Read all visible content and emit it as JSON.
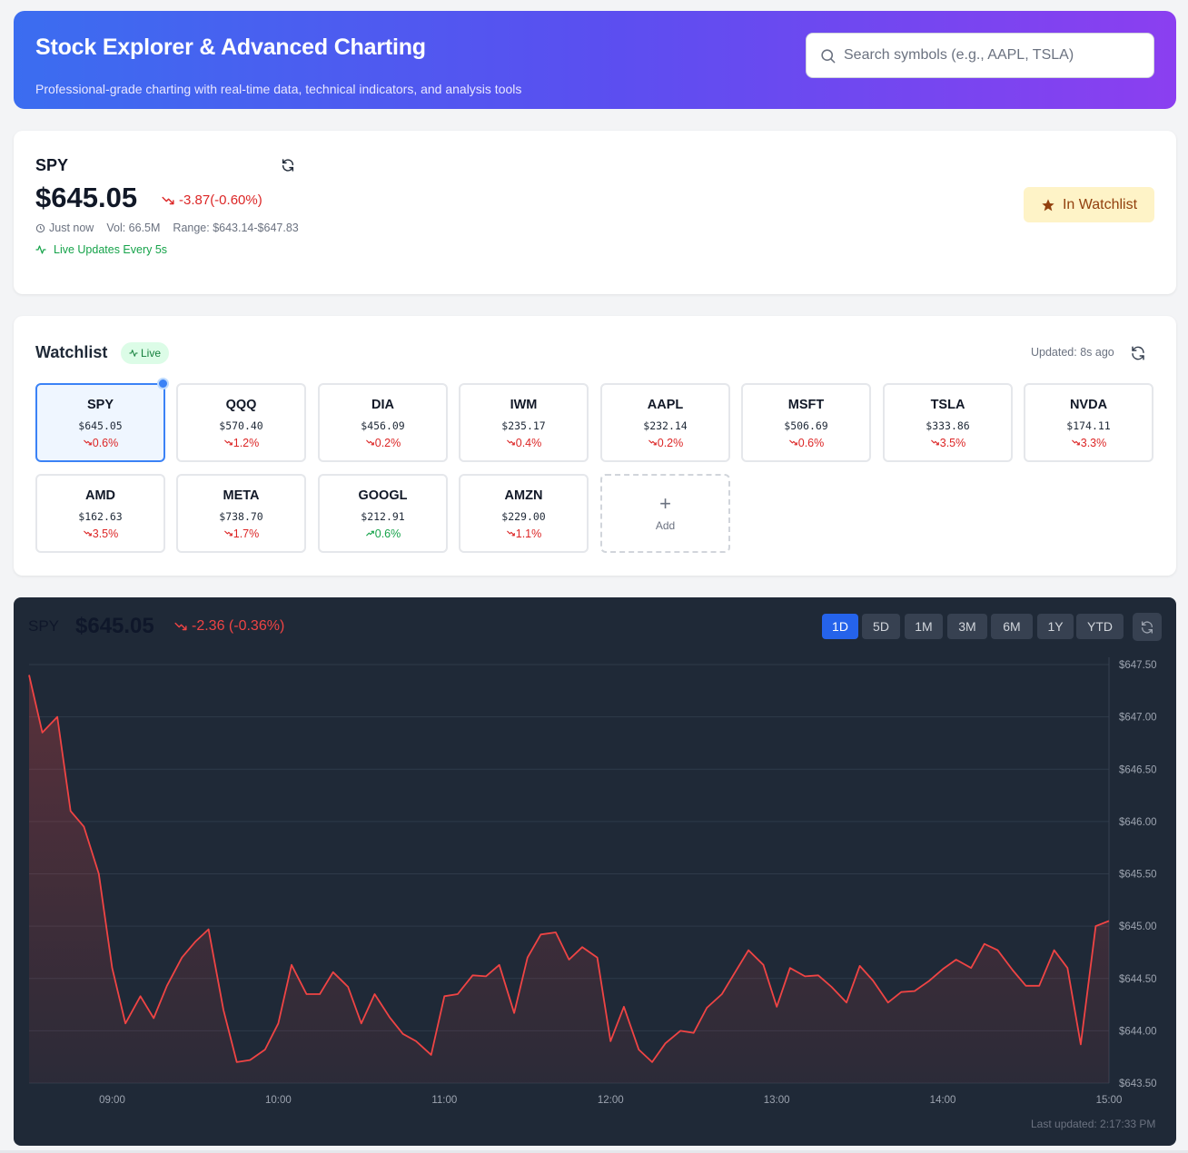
{
  "header": {
    "title": "Stock Explorer & Advanced Charting",
    "subtitle": "Professional-grade charting with real-time data, technical indicators, and analysis tools",
    "search_placeholder": "Search symbols (e.g., AAPL, TSLA)",
    "search_value": ""
  },
  "quote": {
    "symbol": "SPY",
    "price": "$645.05",
    "change": "-3.87(-0.60%)",
    "time": "Just now",
    "volume": "Vol: 66.5M",
    "range": "Range: $643.14-$647.83",
    "live": "Live Updates Every 5s",
    "watchlist_button": "In Watchlist"
  },
  "watchlist": {
    "title": "Watchlist",
    "live_badge": "Live",
    "updated": "Updated: 8s ago",
    "add_label": "Add",
    "add_symbol": "+",
    "items": [
      {
        "symbol": "SPY",
        "price": "$645.05",
        "change": "0.6%",
        "up": false,
        "active": true
      },
      {
        "symbol": "QQQ",
        "price": "$570.40",
        "change": "1.2%",
        "up": false
      },
      {
        "symbol": "DIA",
        "price": "$456.09",
        "change": "0.2%",
        "up": false
      },
      {
        "symbol": "IWM",
        "price": "$235.17",
        "change": "0.4%",
        "up": false
      },
      {
        "symbol": "AAPL",
        "price": "$232.14",
        "change": "0.2%",
        "up": false
      },
      {
        "symbol": "MSFT",
        "price": "$506.69",
        "change": "0.6%",
        "up": false
      },
      {
        "symbol": "TSLA",
        "price": "$333.86",
        "change": "3.5%",
        "up": false
      },
      {
        "symbol": "NVDA",
        "price": "$174.11",
        "change": "3.3%",
        "up": false
      },
      {
        "symbol": "AMD",
        "price": "$162.63",
        "change": "3.5%",
        "up": false
      },
      {
        "symbol": "META",
        "price": "$738.70",
        "change": "1.7%",
        "up": false
      },
      {
        "symbol": "GOOGL",
        "price": "$212.91",
        "change": "0.6%",
        "up": true
      },
      {
        "symbol": "AMZN",
        "price": "$229.00",
        "change": "1.1%",
        "up": false
      }
    ]
  },
  "chart": {
    "symbol": "SPY",
    "price": "$645.05",
    "change": "-2.36 (-0.36%)",
    "timeframes": [
      "1D",
      "5D",
      "1M",
      "3M",
      "6M",
      "1Y",
      "YTD"
    ],
    "active_timeframe": "1D",
    "last_updated": "Last updated: 2:17:33 PM"
  },
  "colors": {
    "accent": "#2563eb",
    "down": "#ef4444",
    "up": "#16a34a",
    "chart_bg": "#1f2937"
  },
  "chart_data": {
    "type": "area",
    "xlabel": "",
    "ylabel": "",
    "x_ticks": [
      "09:00",
      "10:00",
      "11:00",
      "12:00",
      "13:00",
      "14:00",
      "15:00"
    ],
    "y_ticks": [
      "$647.50",
      "$647.00",
      "$646.50",
      "$646.00",
      "$645.50",
      "$645.00",
      "$644.50",
      "$644.00",
      "$643.50"
    ],
    "ylim": [
      643.5,
      647.5
    ],
    "xlim_hours": [
      8.5,
      15.0
    ],
    "grid": true,
    "series": [
      {
        "x": [
          8.5,
          8.58,
          8.67,
          8.75,
          8.83,
          8.92,
          9.0,
          9.08,
          9.17,
          9.25,
          9.33,
          9.42,
          9.5,
          9.58,
          9.67,
          9.75,
          9.83,
          9.92,
          10.0,
          10.08,
          10.17,
          10.25,
          10.33,
          10.42,
          10.5,
          10.58,
          10.67,
          10.75,
          10.83,
          10.92,
          11.0,
          11.08,
          11.17,
          11.25,
          11.33,
          11.42,
          11.5,
          11.58,
          11.67,
          11.75,
          11.83,
          11.92,
          12.0,
          12.08,
          12.17,
          12.25,
          12.33,
          12.42,
          12.5,
          12.58,
          12.67,
          12.75,
          12.83,
          12.92,
          13.0,
          13.08,
          13.17,
          13.25,
          13.33,
          13.42,
          13.5,
          13.58,
          13.67,
          13.75,
          13.83,
          13.92,
          14.0,
          14.08,
          14.17,
          14.25,
          14.33,
          14.42,
          14.5,
          14.58,
          14.67,
          14.75,
          14.83,
          14.92,
          15.0
        ],
        "y": [
          647.4,
          646.85,
          647.0,
          646.1,
          645.95,
          645.5,
          644.6,
          644.07,
          644.33,
          644.12,
          644.43,
          644.7,
          644.85,
          644.97,
          644.2,
          643.7,
          643.72,
          643.82,
          644.07,
          644.63,
          644.35,
          644.35,
          644.56,
          644.42,
          644.07,
          644.35,
          644.13,
          643.97,
          643.9,
          643.77,
          644.33,
          644.35,
          644.53,
          644.52,
          644.63,
          644.17,
          644.7,
          644.92,
          644.94,
          644.68,
          644.8,
          644.7,
          643.9,
          644.23,
          643.82,
          643.7,
          643.88,
          644.0,
          643.98,
          644.22,
          644.35,
          644.56,
          644.77,
          644.63,
          644.23,
          644.6,
          644.52,
          644.53,
          644.42,
          644.27,
          644.62,
          644.48,
          644.27,
          644.37,
          644.38,
          644.48,
          644.59,
          644.68,
          644.6,
          644.83,
          644.77,
          644.58,
          644.43,
          644.43,
          644.77,
          644.6,
          643.87,
          645.0,
          645.05
        ]
      }
    ]
  }
}
